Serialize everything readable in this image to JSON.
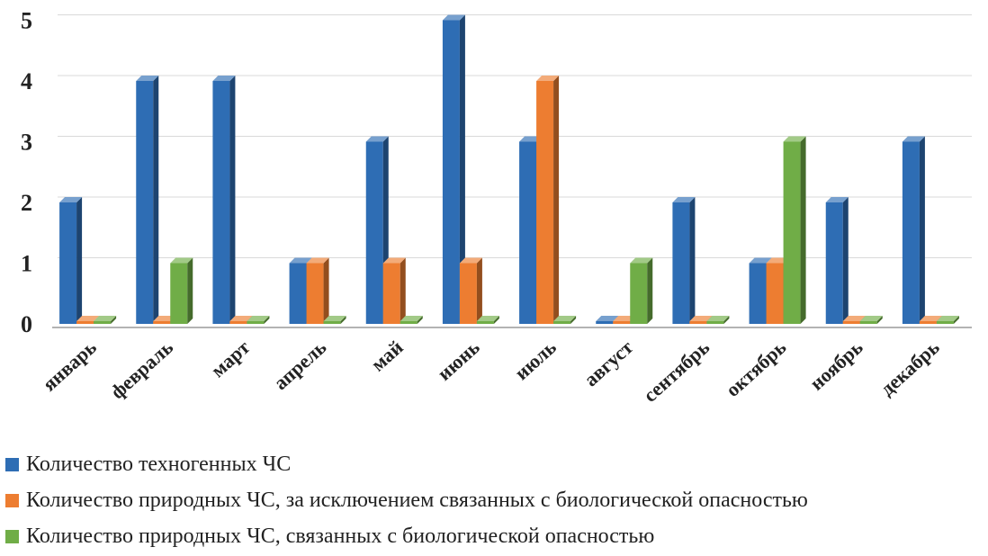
{
  "chart_data": {
    "type": "bar",
    "title": "",
    "xlabel": "",
    "ylabel": "",
    "ylim": [
      0,
      5
    ],
    "yticks": [
      "0",
      "1",
      "2",
      "3",
      "4",
      "5"
    ],
    "grid": true,
    "legend_position": "bottom",
    "categories": [
      "январь",
      "февраль",
      "март",
      "апрель",
      "май",
      "июнь",
      "июль",
      "август",
      "сентябрь",
      "октябрь",
      "ноябрь",
      "декабрь"
    ],
    "series": [
      {
        "name": "Количество техногенных ЧС",
        "color": "#2E6DB4",
        "values": [
          2,
          4,
          4,
          1,
          3,
          5,
          3,
          0,
          2,
          1,
          2,
          3
        ]
      },
      {
        "name": "Количество природных ЧС, за исключением связанных с биологической опасностью",
        "color": "#ED7D31",
        "values": [
          0,
          0,
          0,
          1,
          1,
          1,
          4,
          0,
          0,
          1,
          0,
          0
        ]
      },
      {
        "name": "Количество природных ЧС, связанных с биологической опасностью",
        "color": "#70AD47",
        "values": [
          0,
          1,
          0,
          0,
          0,
          0,
          0,
          1,
          0,
          3,
          0,
          0
        ]
      }
    ]
  }
}
